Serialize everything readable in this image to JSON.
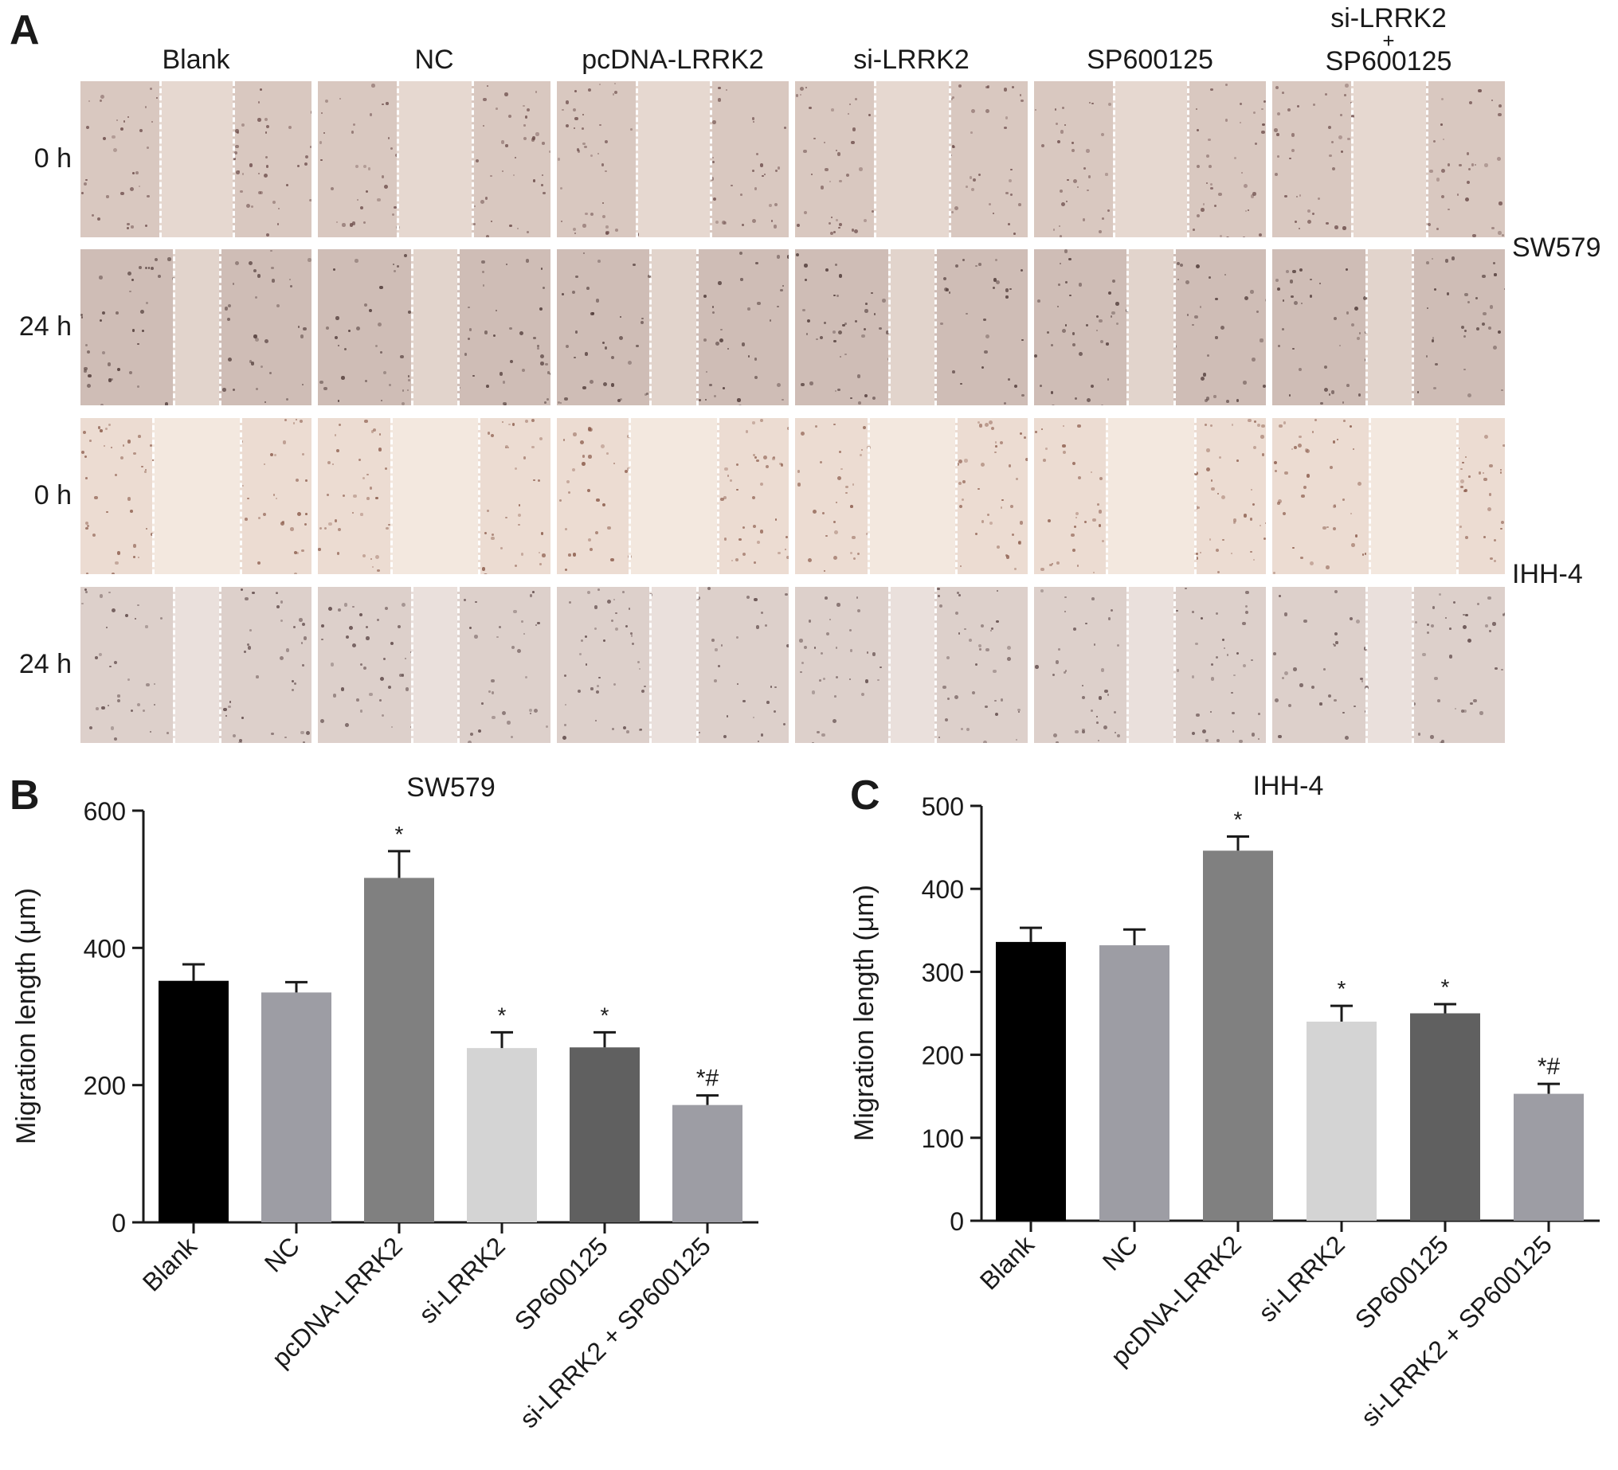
{
  "panel_a": {
    "letter": "A",
    "column_labels": [
      "Blank",
      "NC",
      "pcDNA-LRRK2",
      "si-LRRK2",
      "SP600125",
      "si-LRRK2\n+\nSP600125"
    ],
    "row_labels": [
      "0 h",
      "24 h",
      "0 h",
      "24 h"
    ],
    "cell_lines": [
      "SW579",
      "IHH-4"
    ]
  },
  "chart_data": [
    {
      "panel": "B",
      "type": "bar",
      "title": "SW579",
      "ylabel": "Migration length (μm)",
      "xlabel": "",
      "categories": [
        "Blank",
        "NC",
        "pcDNA-LRRK2",
        "si-LRRK2",
        "SP600125",
        "si-LRRK2 + SP600125"
      ],
      "values": [
        352,
        335,
        502,
        254,
        255,
        171
      ],
      "errors": [
        24,
        15,
        39,
        23,
        22,
        14
      ],
      "annotations": [
        "",
        "",
        "*",
        "*",
        "*",
        "*#"
      ],
      "colors": [
        "#000000",
        "#9d9da4",
        "#808080",
        "#d4d4d4",
        "#606060",
        "#9d9da4"
      ],
      "ylim": [
        0,
        600
      ],
      "yticks": [
        0,
        200,
        400,
        600
      ]
    },
    {
      "panel": "C",
      "type": "bar",
      "title": "IHH-4",
      "ylabel": "Migration length (μm)",
      "xlabel": "",
      "categories": [
        "Blank",
        "NC",
        "pcDNA-LRRK2",
        "si-LRRK2",
        "SP600125",
        "si-LRRK2 + SP600125"
      ],
      "values": [
        336,
        332,
        446,
        240,
        250,
        153
      ],
      "errors": [
        17,
        19,
        17,
        19,
        11,
        12
      ],
      "annotations": [
        "",
        "",
        "*",
        "*",
        "*",
        "*#"
      ],
      "colors": [
        "#000000",
        "#9d9da4",
        "#808080",
        "#d4d4d4",
        "#606060",
        "#9d9da4"
      ],
      "ylim": [
        0,
        500
      ],
      "yticks": [
        0,
        100,
        200,
        300,
        400,
        500
      ]
    }
  ]
}
